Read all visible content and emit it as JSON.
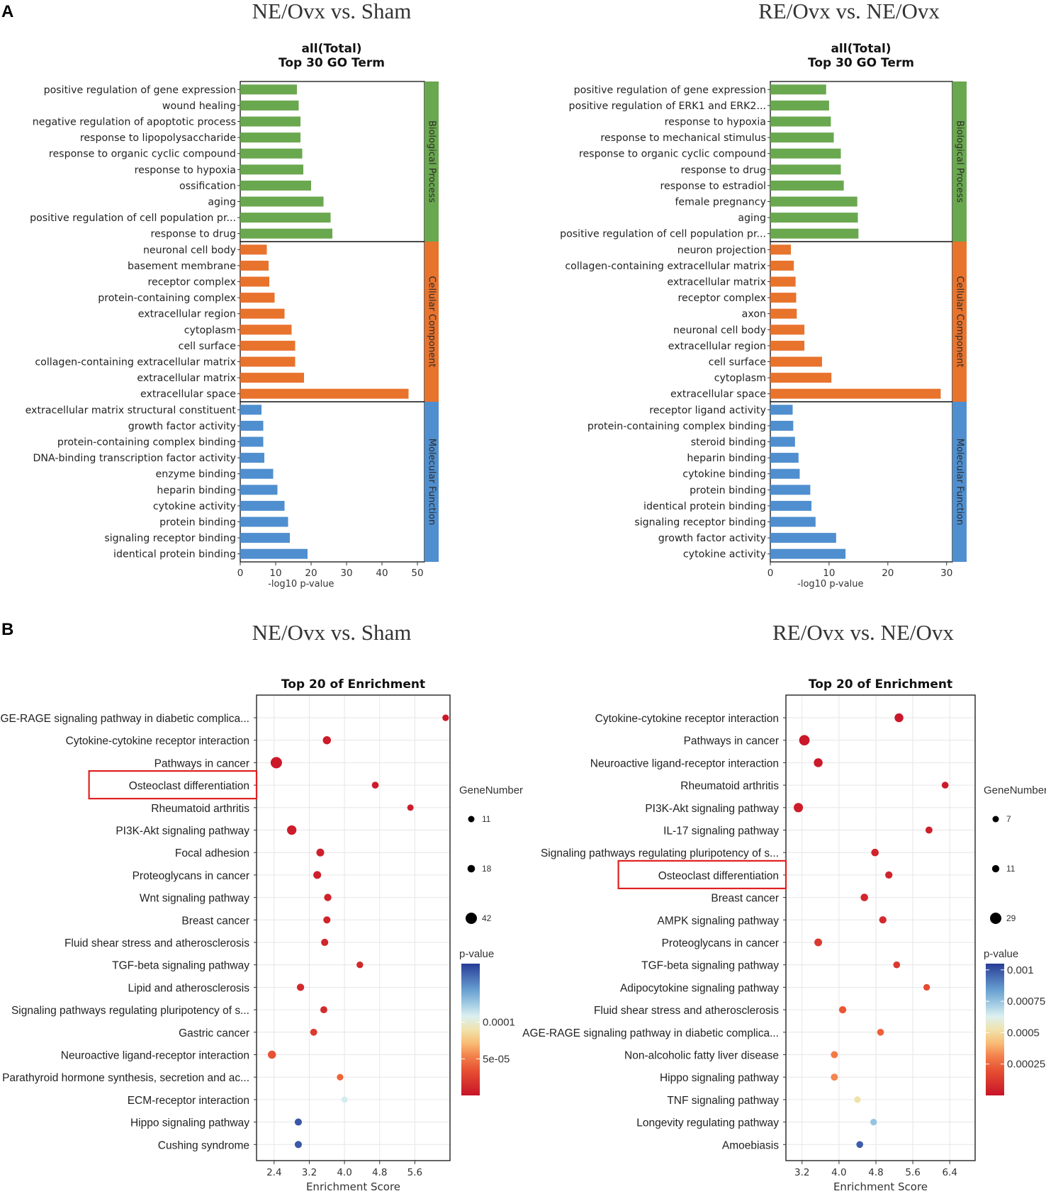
{
  "panels": {
    "a_letter": "A",
    "b_letter": "B"
  },
  "colors": {
    "Biological Process": "#6aa84f",
    "Cellular Component": "#e8732d",
    "Molecular Function": "#4f8fcf"
  },
  "chart_data": [
    {
      "type": "bar",
      "panel_title": "NE/Ovx vs. Sham",
      "title": "all(Total)",
      "subtitle": "Top 30 GO Term",
      "xlabel": "-log10 p-value",
      "xlim": [
        0,
        52
      ],
      "xticks": [
        0,
        10,
        20,
        30,
        40,
        50
      ],
      "groups": [
        {
          "name": "Biological Process",
          "terms": [
            {
              "label": "positive regulation of gene expression",
              "value": 16
            },
            {
              "label": "wound healing",
              "value": 16.5
            },
            {
              "label": "negative regulation of apoptotic process",
              "value": 17
            },
            {
              "label": "response to lipopolysaccharide",
              "value": 17
            },
            {
              "label": "response to organic cyclic compound",
              "value": 17.5
            },
            {
              "label": "response to hypoxia",
              "value": 17.8
            },
            {
              "label": "ossification",
              "value": 20
            },
            {
              "label": "aging",
              "value": 23.5
            },
            {
              "label": "positive regulation of cell population pr...",
              "value": 25.5
            },
            {
              "label": "response to drug",
              "value": 26
            }
          ]
        },
        {
          "name": "Cellular Component",
          "terms": [
            {
              "label": "neuronal cell body",
              "value": 7.5
            },
            {
              "label": "basement membrane",
              "value": 8
            },
            {
              "label": "receptor complex",
              "value": 8.2
            },
            {
              "label": "protein-containing complex",
              "value": 9.7
            },
            {
              "label": "extracellular region",
              "value": 12.5
            },
            {
              "label": "cytoplasm",
              "value": 14.5
            },
            {
              "label": "cell surface",
              "value": 15.5
            },
            {
              "label": "collagen-containing extracellular matrix",
              "value": 15.5
            },
            {
              "label": "extracellular matrix",
              "value": 18
            },
            {
              "label": "extracellular space",
              "value": 47.5
            }
          ]
        },
        {
          "name": "Molecular Function",
          "terms": [
            {
              "label": "extracellular matrix structural constituent",
              "value": 6
            },
            {
              "label": "growth factor activity",
              "value": 6.5
            },
            {
              "label": "protein-containing complex binding",
              "value": 6.5
            },
            {
              "label": "DNA-binding transcription factor activity",
              "value": 6.8
            },
            {
              "label": "enzyme binding",
              "value": 9.3
            },
            {
              "label": "heparin binding",
              "value": 10.5
            },
            {
              "label": "cytokine activity",
              "value": 12.5
            },
            {
              "label": "protein binding",
              "value": 13.5
            },
            {
              "label": "signaling receptor binding",
              "value": 14
            },
            {
              "label": "identical protein binding",
              "value": 19
            }
          ]
        }
      ]
    },
    {
      "type": "bar",
      "panel_title": "RE/Ovx vs. NE/Ovx",
      "title": "all(Total)",
      "subtitle": "Top 30 GO Term",
      "xlabel": "-log10 p-value",
      "xlim": [
        0,
        31
      ],
      "xticks": [
        0,
        10,
        20,
        30
      ],
      "groups": [
        {
          "name": "Biological Process",
          "terms": [
            {
              "label": "positive regulation of gene expression",
              "value": 9.5
            },
            {
              "label": "positive regulation of ERK1 and ERK2...",
              "value": 10
            },
            {
              "label": "response to hypoxia",
              "value": 10.3
            },
            {
              "label": "response to mechanical stimulus",
              "value": 10.8
            },
            {
              "label": "response to organic cyclic compound",
              "value": 12
            },
            {
              "label": "response to drug",
              "value": 12
            },
            {
              "label": "response to estradiol",
              "value": 12.5
            },
            {
              "label": "female pregnancy",
              "value": 14.8
            },
            {
              "label": "aging",
              "value": 14.9
            },
            {
              "label": "positive regulation of cell population pr...",
              "value": 15
            }
          ]
        },
        {
          "name": "Cellular Component",
          "terms": [
            {
              "label": "neuron projection",
              "value": 3.5
            },
            {
              "label": "collagen-containing extracellular matrix",
              "value": 4
            },
            {
              "label": "extracellular matrix",
              "value": 4.3
            },
            {
              "label": "receptor complex",
              "value": 4.4
            },
            {
              "label": "axon",
              "value": 4.5
            },
            {
              "label": "neuronal cell body",
              "value": 5.8
            },
            {
              "label": "extracellular region",
              "value": 5.8
            },
            {
              "label": "cell surface",
              "value": 8.8
            },
            {
              "label": "cytoplasm",
              "value": 10.4
            },
            {
              "label": "extracellular space",
              "value": 29
            }
          ]
        },
        {
          "name": "Molecular Function",
          "terms": [
            {
              "label": "receptor ligand activity",
              "value": 3.8
            },
            {
              "label": "protein-containing complex binding",
              "value": 3.9
            },
            {
              "label": "steroid binding",
              "value": 4.2
            },
            {
              "label": "heparin binding",
              "value": 4.8
            },
            {
              "label": "cytokine binding",
              "value": 5
            },
            {
              "label": "protein binding",
              "value": 6.8
            },
            {
              "label": "identical protein binding",
              "value": 7
            },
            {
              "label": "signaling receptor binding",
              "value": 7.7
            },
            {
              "label": "growth factor activity",
              "value": 11.2
            },
            {
              "label": "cytokine activity",
              "value": 12.8
            }
          ]
        }
      ]
    },
    {
      "type": "scatter",
      "panel_title": "NE/Ovx vs. Sham",
      "title": "Top 20 of  Enrichment",
      "xlabel": "Enrichment Score",
      "xlim": [
        2.0,
        6.4
      ],
      "xticks": [
        "2.4",
        "3.2",
        "4.0",
        "4.8",
        "5.6"
      ],
      "highlight": "Osteoclast differentiation",
      "size_legend_title": "GeneNumber",
      "size_legend": [
        11,
        18,
        42
      ],
      "color_legend_title": "p-value",
      "color_ticks": [
        {
          "label": "0.0001",
          "value": 0.0001
        },
        {
          "label": "5e-05",
          "value": 5e-05
        }
      ],
      "color_scale_max": 0.00018,
      "points": [
        {
          "label": "AGE-RAGE signaling pathway in diabetic complica...",
          "x": 6.3,
          "genes": 12,
          "p": 2e-06
        },
        {
          "label": "Cytokine-cytokine receptor interaction",
          "x": 3.6,
          "genes": 22,
          "p": 4e-06
        },
        {
          "label": "Pathways in cancer",
          "x": 2.45,
          "genes": 42,
          "p": 3e-06
        },
        {
          "label": "Osteoclast differentiation",
          "x": 4.7,
          "genes": 14,
          "p": 4e-06
        },
        {
          "label": "Rheumatoid arthritis",
          "x": 5.5,
          "genes": 11,
          "p": 5e-06
        },
        {
          "label": "PI3K-Akt signaling pathway",
          "x": 2.8,
          "genes": 30,
          "p": 5e-06
        },
        {
          "label": "Focal adhesion",
          "x": 3.45,
          "genes": 20,
          "p": 7e-06
        },
        {
          "label": "Proteoglycans in cancer",
          "x": 3.38,
          "genes": 20,
          "p": 7e-06
        },
        {
          "label": "Wnt signaling pathway",
          "x": 3.62,
          "genes": 17,
          "p": 8e-06
        },
        {
          "label": "Breast cancer",
          "x": 3.6,
          "genes": 16,
          "p": 9e-06
        },
        {
          "label": "Fluid shear stress and atherosclerosis",
          "x": 3.55,
          "genes": 16,
          "p": 1e-05
        },
        {
          "label": "TGF-beta signaling pathway",
          "x": 4.35,
          "genes": 13,
          "p": 1.1e-05
        },
        {
          "label": "Lipid and atherosclerosis",
          "x": 3.0,
          "genes": 17,
          "p": 1.2e-05
        },
        {
          "label": "Signaling pathways regulating pluripotency of s...",
          "x": 3.53,
          "genes": 15,
          "p": 1.3e-05
        },
        {
          "label": "Gastric cancer",
          "x": 3.3,
          "genes": 15,
          "p": 2.2e-05
        },
        {
          "label": "Neuroactive ligand-receptor interaction",
          "x": 2.35,
          "genes": 22,
          "p": 3.5e-05
        },
        {
          "label": "Parathyroid hormone synthesis, secretion and ac...",
          "x": 3.9,
          "genes": 12,
          "p": 4.5e-05
        },
        {
          "label": "ECM-receptor interaction",
          "x": 4.0,
          "genes": 11,
          "p": 0.00011
        },
        {
          "label": "Hippo signaling pathway",
          "x": 2.95,
          "genes": 16,
          "p": 0.00017
        },
        {
          "label": "Cushing syndrome",
          "x": 2.95,
          "genes": 16,
          "p": 0.00017
        }
      ]
    },
    {
      "type": "scatter",
      "panel_title": "RE/Ovx vs. NE/Ovx",
      "title": "Top 20 of  Enrichment",
      "xlabel": "Enrichment Score",
      "xlim": [
        2.85,
        6.95
      ],
      "xticks": [
        "3.2",
        "4.0",
        "4.8",
        "5.6",
        "6.4"
      ],
      "highlight": "Osteoclast differentiation",
      "size_legend_title": "GeneNumber",
      "size_legend": [
        7,
        11,
        29
      ],
      "color_legend_title": "p-value",
      "color_ticks": [
        {
          "label": "0.001",
          "value": 0.001
        },
        {
          "label": "0.00075",
          "value": 0.00075
        },
        {
          "label": "0.0005",
          "value": 0.0005
        },
        {
          "label": "0.00025",
          "value": 0.00025
        }
      ],
      "color_scale_max": 0.00105,
      "points": [
        {
          "label": "Cytokine-cytokine receptor interaction",
          "x": 5.3,
          "genes": 18,
          "p": 1e-05
        },
        {
          "label": "Pathways in cancer",
          "x": 3.25,
          "genes": 25,
          "p": 1e-05
        },
        {
          "label": "Neuroactive ligand-receptor interaction",
          "x": 3.55,
          "genes": 18,
          "p": 2e-05
        },
        {
          "label": "Rheumatoid arthritis",
          "x": 6.3,
          "genes": 9,
          "p": 2e-05
        },
        {
          "label": "PI3K-Akt signaling pathway",
          "x": 3.12,
          "genes": 20,
          "p": 3e-05
        },
        {
          "label": "IL-17 signaling pathway",
          "x": 5.95,
          "genes": 10,
          "p": 4e-05
        },
        {
          "label": "Signaling pathways regulating pluripotency of s...",
          "x": 4.78,
          "genes": 12,
          "p": 5e-05
        },
        {
          "label": "Osteoclast differentiation",
          "x": 5.08,
          "genes": 11,
          "p": 5e-05
        },
        {
          "label": "Breast cancer",
          "x": 4.55,
          "genes": 12,
          "p": 6e-05
        },
        {
          "label": "AMPK signaling pathway",
          "x": 4.95,
          "genes": 11,
          "p": 7e-05
        },
        {
          "label": "Proteoglycans in cancer",
          "x": 3.55,
          "genes": 13,
          "p": 0.00012
        },
        {
          "label": "TGF-beta signaling pathway",
          "x": 5.25,
          "genes": 9,
          "p": 0.00012
        },
        {
          "label": "Adipocytokine signaling pathway",
          "x": 5.9,
          "genes": 8,
          "p": 0.00018
        },
        {
          "label": "Fluid shear stress and atherosclerosis",
          "x": 4.08,
          "genes": 11,
          "p": 0.00022
        },
        {
          "label": "AGE-RAGE signaling pathway in diabetic complica...",
          "x": 4.9,
          "genes": 9,
          "p": 0.00025
        },
        {
          "label": "Non-alcoholic fatty liver disease",
          "x": 3.9,
          "genes": 10,
          "p": 0.0003
        },
        {
          "label": "Hippo signaling pathway",
          "x": 3.9,
          "genes": 10,
          "p": 0.00032
        },
        {
          "label": "TNF signaling pathway",
          "x": 4.4,
          "genes": 8,
          "p": 0.00052
        },
        {
          "label": "Longevity regulating pathway",
          "x": 4.75,
          "genes": 8,
          "p": 0.00075
        },
        {
          "label": "Amoebiasis",
          "x": 4.45,
          "genes": 9,
          "p": 0.00098
        }
      ]
    }
  ]
}
